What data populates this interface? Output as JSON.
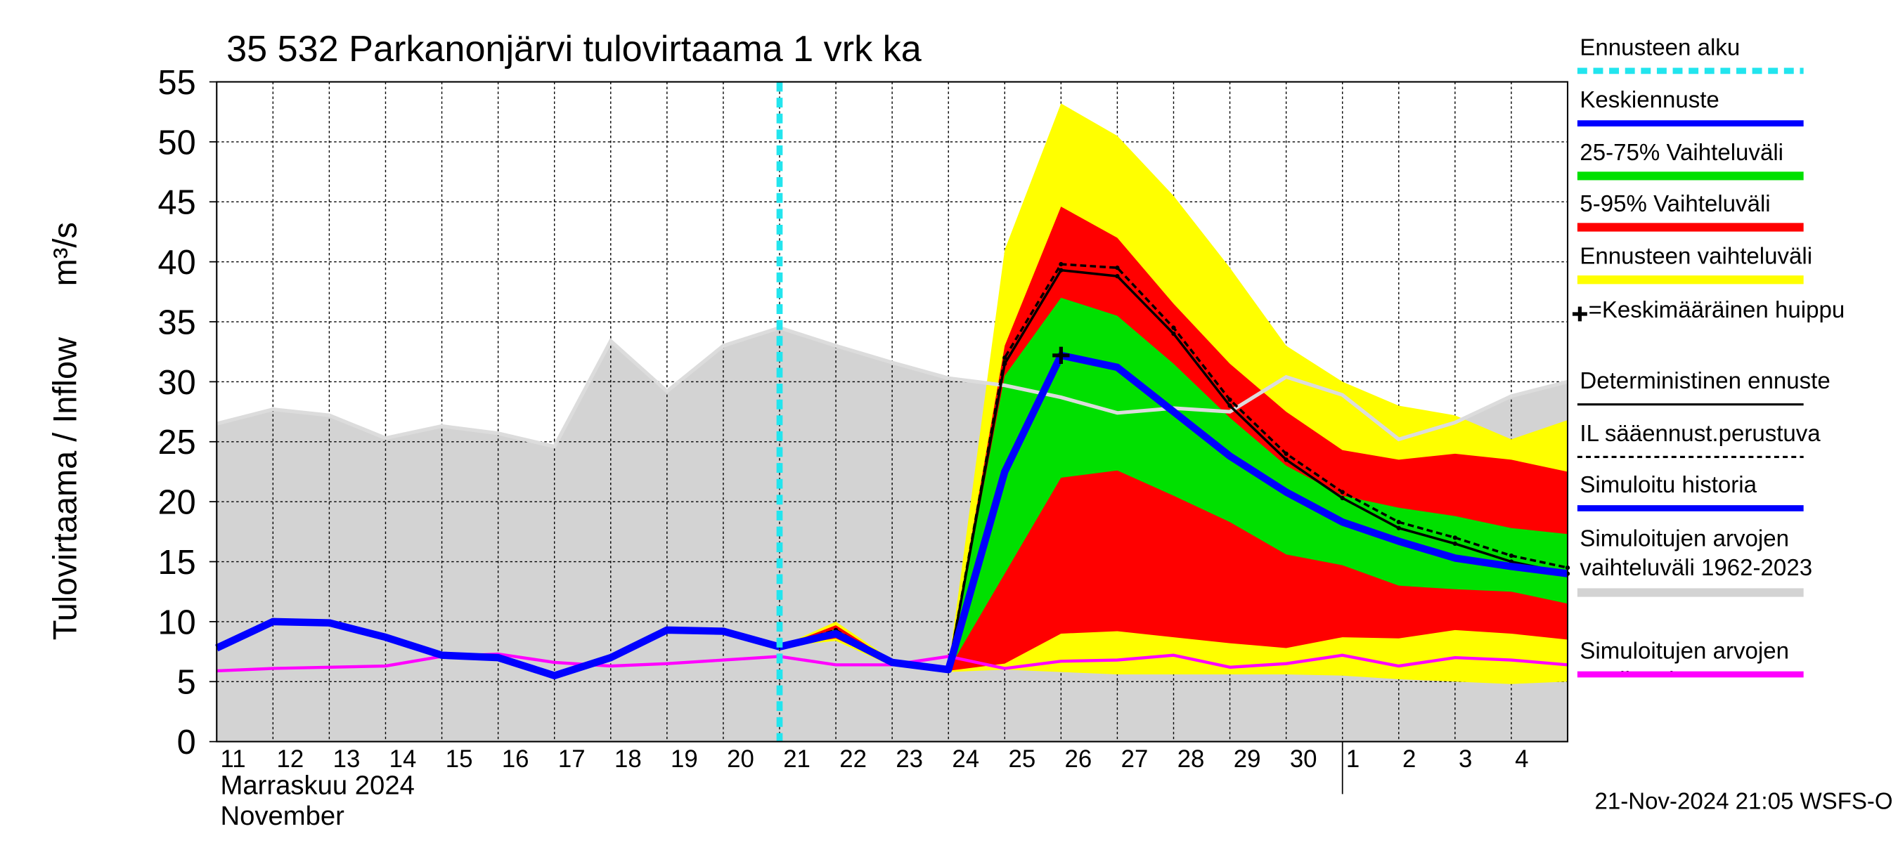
{
  "chart_data": {
    "type": "forecast",
    "title": "35 532 Parkanonjärvi tulovirtaama 1 vrk ka",
    "y_label": "Tulovirtaama / Inflow",
    "y_unit": "m³/s",
    "x_axis_labels": [
      "Marraskuu 2024",
      "November"
    ],
    "timestamp": "21-Nov-2024 21:05 WSFS-O",
    "categories": [
      "11",
      "12",
      "13",
      "14",
      "15",
      "16",
      "17",
      "18",
      "19",
      "20",
      "21",
      "22",
      "23",
      "24",
      "25",
      "26",
      "27",
      "28",
      "29",
      "30",
      "1",
      "2",
      "3",
      "4",
      null
    ],
    "ylim": [
      0,
      55
    ],
    "yticks": [
      0,
      5,
      10,
      15,
      20,
      25,
      30,
      35,
      40,
      45,
      50,
      55
    ],
    "grid": true,
    "series": [
      {
        "name": "Ennusteen alku",
        "style": "vline",
        "color": "#22e5ee",
        "at": "21"
      },
      {
        "name": "Keskiennuste",
        "style": "line",
        "color": "#0000ff",
        "values": [
          null,
          null,
          null,
          null,
          null,
          null,
          null,
          null,
          null,
          null,
          7.9,
          9.0,
          6.6,
          6.0,
          22.5,
          32.2,
          31.2,
          27.5,
          23.8,
          20.8,
          18.3,
          16.7,
          15.3,
          14.6,
          14.0
        ]
      },
      {
        "name": "25-75% Vaihteluväli",
        "style": "band",
        "color": "#00e000",
        "upper": [
          null,
          null,
          null,
          null,
          null,
          null,
          null,
          null,
          null,
          null,
          7.9,
          9.4,
          6.6,
          6.0,
          30.5,
          37,
          35.5,
          31.5,
          27,
          23,
          20.5,
          19.5,
          18.8,
          17.8,
          17.3
        ],
        "lower": [
          null,
          null,
          null,
          null,
          null,
          null,
          null,
          null,
          null,
          null,
          7.9,
          8.9,
          6.5,
          6.0,
          14,
          22,
          22.6,
          20.5,
          18.3,
          15.6,
          14.7,
          13,
          12.7,
          12.5,
          11.5
        ]
      },
      {
        "name": "5-95% Vaihteluväli",
        "style": "band",
        "color": "#ff0000",
        "upper": [
          null,
          null,
          null,
          null,
          null,
          null,
          null,
          null,
          null,
          null,
          7.9,
          9.7,
          6.7,
          6.1,
          33,
          44.6,
          42,
          36.5,
          31.5,
          27.5,
          24.3,
          23.5,
          24,
          23.5,
          22.5
        ],
        "lower": [
          null,
          null,
          null,
          null,
          null,
          null,
          null,
          null,
          null,
          null,
          7.9,
          8.6,
          6.4,
          5.9,
          6.5,
          9,
          9.2,
          8.7,
          8.2,
          7.8,
          8.7,
          8.6,
          9.3,
          9,
          8.5
        ]
      },
      {
        "name": "Ennusteen vaihteluväli",
        "style": "band",
        "color": "#ffff00",
        "upper": [
          null,
          null,
          null,
          null,
          null,
          null,
          null,
          null,
          null,
          null,
          7.9,
          10,
          6.8,
          6.2,
          41,
          53.2,
          50.5,
          45.5,
          39.5,
          33,
          30,
          28,
          27.2,
          25.2,
          26.8
        ],
        "lower": [
          null,
          null,
          null,
          null,
          null,
          null,
          null,
          null,
          null,
          null,
          7.9,
          8.4,
          6.3,
          5.8,
          6.0,
          5.8,
          5.6,
          5.6,
          5.6,
          5.6,
          5.5,
          5.2,
          5.0,
          4.8,
          5.0
        ]
      },
      {
        "name": "=Keskimääräinen huippu",
        "style": "peak",
        "color": "#000000",
        "x": "26",
        "value": 32.2
      },
      {
        "name": "Deterministinen ennuste",
        "style": "line",
        "color": "#000000",
        "values": [
          null,
          null,
          null,
          null,
          null,
          null,
          null,
          null,
          null,
          null,
          7.9,
          9.2,
          6.6,
          6.0,
          31.5,
          39.3,
          38.8,
          34,
          28,
          23.5,
          20.3,
          17.8,
          16.5,
          15,
          14
        ]
      },
      {
        "name": "IL sääennust.perustuva",
        "style": "line",
        "color": "#000000",
        "dashed": true,
        "values": [
          null,
          null,
          null,
          null,
          null,
          null,
          null,
          null,
          null,
          null,
          7.9,
          9.3,
          6.6,
          6.0,
          32,
          39.8,
          39.5,
          34.5,
          28.5,
          24,
          20.8,
          18.3,
          17,
          15.5,
          14.5
        ]
      },
      {
        "name": "Simuloitu historia",
        "style": "line",
        "color": "#0000ff",
        "values": [
          7.8,
          10,
          9.9,
          8.7,
          7.2,
          7.0,
          5.5,
          7.0,
          9.3,
          9.2,
          7.9,
          null,
          null,
          null,
          null,
          null,
          null,
          null,
          null,
          null,
          null,
          null,
          null,
          null,
          null
        ]
      },
      {
        "name": "Simuloitujen arvojen vaihteluväli 1962-2023",
        "style": "band",
        "color": "#d3d3d3",
        "upper": [
          26.5,
          27.7,
          27.2,
          25.3,
          26.3,
          25.7,
          24.6,
          33.4,
          29.2,
          33.0,
          34.5,
          33.0,
          31.6,
          30.3,
          29.7,
          28.7,
          27.4,
          27.8,
          27.5,
          30.4,
          28.9,
          25.2,
          26.6,
          28.8,
          30.0
        ],
        "lower": [
          0,
          0,
          0,
          0,
          0,
          0,
          0,
          0,
          0,
          0,
          0,
          0,
          0,
          0,
          0,
          0,
          0,
          0,
          0,
          0,
          0,
          0,
          0,
          0,
          0
        ]
      },
      {
        "name": "Simuloitujen arvojen mediaani",
        "style": "line",
        "color": "#ff00ff",
        "values": [
          5.9,
          6.1,
          6.2,
          6.3,
          7.1,
          7.3,
          6.6,
          6.3,
          6.5,
          6.8,
          7.1,
          6.4,
          6.4,
          7.1,
          6.1,
          6.7,
          6.8,
          7.2,
          6.2,
          6.5,
          7.2,
          6.3,
          7.0,
          6.8,
          6.4
        ]
      }
    ]
  }
}
